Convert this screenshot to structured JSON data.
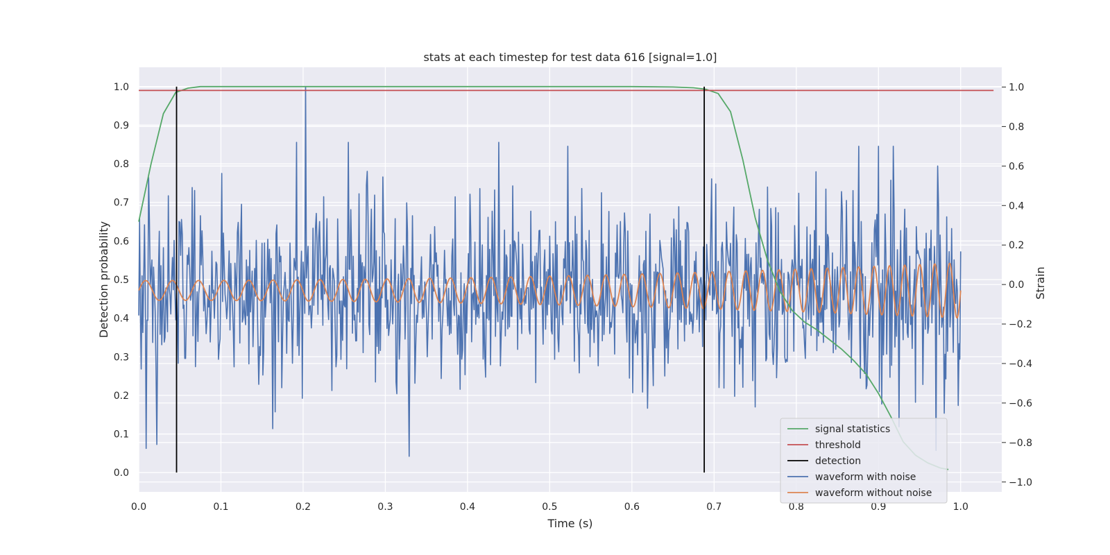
{
  "chart_data": {
    "type": "line",
    "title": "stats at each timestep for test data 616 [signal=1.0]",
    "xlabel": "Time (s)",
    "ylabel_left": "Detection probability",
    "ylabel_right": "Strain",
    "xlim": [
      0.0,
      1.05
    ],
    "ylim_left": [
      -0.05,
      1.05
    ],
    "ylim_right": [
      -1.05,
      1.1
    ],
    "x_ticks": [
      0.0,
      0.1,
      0.2,
      0.3,
      0.4,
      0.5,
      0.6,
      0.7,
      0.8,
      0.9,
      1.0
    ],
    "x_tick_labels": [
      "0.0",
      "0.1",
      "0.2",
      "0.3",
      "0.4",
      "0.5",
      "0.6",
      "0.7",
      "0.8",
      "0.9",
      "1.0"
    ],
    "y_ticks_left": [
      0.0,
      0.1,
      0.2,
      0.3,
      0.4,
      0.5,
      0.6,
      0.7,
      0.8,
      0.9,
      1.0
    ],
    "y_tick_labels_left": [
      "0.0",
      "0.1",
      "0.2",
      "0.3",
      "0.4",
      "0.5",
      "0.6",
      "0.7",
      "0.8",
      "0.9",
      "1.0"
    ],
    "y_ticks_right": [
      -1.0,
      -0.8,
      -0.6,
      -0.4,
      -0.2,
      0.0,
      0.2,
      0.4,
      0.6,
      0.8,
      1.0
    ],
    "y_tick_labels_right": [
      "−1.0",
      "−0.8",
      "−0.6",
      "−0.4",
      "−0.2",
      "0.0",
      "0.2",
      "0.4",
      "0.6",
      "0.8",
      "1.0"
    ],
    "grid": true,
    "legend_position": "lower-right",
    "colors": {
      "background": "#eaeaf2",
      "grid": "#ffffff",
      "signal_statistics": "#55a868",
      "threshold": "#c44e52",
      "detection": "#000000",
      "waveform_with_noise": "#4c72b0",
      "waveform_without_noise": "#dd8452"
    },
    "legend": [
      {
        "label": "signal statistics",
        "key": "signal_statistics"
      },
      {
        "label": "threshold",
        "key": "threshold"
      },
      {
        "label": "detection",
        "key": "detection"
      },
      {
        "label": "waveform with noise",
        "key": "waveform_with_noise"
      },
      {
        "label": "waveform without noise",
        "key": "waveform_without_noise"
      }
    ],
    "signal_statistics": {
      "axis": "left",
      "x": [
        0.0,
        0.015,
        0.03,
        0.045,
        0.06,
        0.075,
        0.1,
        0.2,
        0.3,
        0.4,
        0.5,
        0.6,
        0.65,
        0.675,
        0.69,
        0.705,
        0.72,
        0.735,
        0.75,
        0.765,
        0.78,
        0.795,
        0.81,
        0.825,
        0.84,
        0.855,
        0.87,
        0.885,
        0.9,
        0.915,
        0.93,
        0.945,
        0.96,
        0.975,
        0.985
      ],
      "y": [
        0.65,
        0.8,
        0.93,
        0.985,
        0.996,
        1.0,
        1.0,
        1.0,
        1.0,
        1.0,
        1.0,
        1.0,
        0.999,
        0.997,
        0.993,
        0.982,
        0.935,
        0.81,
        0.66,
        0.55,
        0.47,
        0.42,
        0.39,
        0.37,
        0.345,
        0.32,
        0.29,
        0.255,
        0.205,
        0.145,
        0.08,
        0.045,
        0.025,
        0.012,
        0.008
      ]
    },
    "threshold": {
      "axis": "left",
      "value": 0.99,
      "x_range": [
        0.0,
        1.04
      ]
    },
    "detections": {
      "axis": "left",
      "x": [
        0.046,
        0.688
      ],
      "y_range": [
        0.0,
        1.0
      ]
    },
    "waveform_without_noise": {
      "axis": "right",
      "x_range": [
        0.0,
        1.0
      ],
      "start_frequency_hz": 30,
      "end_frequency_hz": 56,
      "start_amplitude": 0.05,
      "end_amplitude": 0.14,
      "center": -0.03
    },
    "waveform_with_noise": {
      "axis": "right",
      "x_range": [
        0.0,
        1.0
      ],
      "n_points": 1000,
      "noise_std": 0.22,
      "max": 1.0,
      "min": -0.87,
      "notable_peaks": [
        {
          "x": 0.203,
          "y": 1.0
        },
        {
          "x": 0.192,
          "y": 0.72
        },
        {
          "x": 0.255,
          "y": 0.72
        },
        {
          "x": 0.438,
          "y": 0.72
        },
        {
          "x": 0.9,
          "y": 0.7
        },
        {
          "x": 0.972,
          "y": 0.6
        }
      ],
      "notable_troughs": [
        {
          "x": 0.329,
          "y": -0.87
        },
        {
          "x": 0.009,
          "y": -0.83
        },
        {
          "x": 0.022,
          "y": -0.81
        },
        {
          "x": 0.163,
          "y": -0.73
        },
        {
          "x": 0.97,
          "y": -0.84
        },
        {
          "x": 0.75,
          "y": -0.62
        },
        {
          "x": 0.925,
          "y": -0.72
        }
      ]
    }
  }
}
